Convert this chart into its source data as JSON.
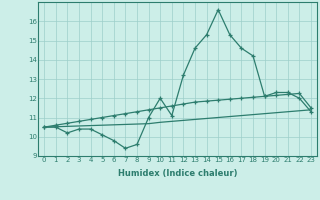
{
  "xlabel": "Humidex (Indice chaleur)",
  "x": [
    0,
    1,
    2,
    3,
    4,
    5,
    6,
    7,
    8,
    9,
    10,
    11,
    12,
    13,
    14,
    15,
    16,
    17,
    18,
    19,
    20,
    21,
    22,
    23
  ],
  "y_line1": [
    10.5,
    10.5,
    10.2,
    10.4,
    10.4,
    10.1,
    9.8,
    9.4,
    9.6,
    11.0,
    12.0,
    11.1,
    13.2,
    14.6,
    15.3,
    16.6,
    15.3,
    14.6,
    14.2,
    12.1,
    12.3,
    12.3,
    12.0,
    11.3
  ],
  "y_line2": [
    10.5,
    10.6,
    10.7,
    10.8,
    10.9,
    11.0,
    11.1,
    11.2,
    11.3,
    11.4,
    11.5,
    11.6,
    11.7,
    11.8,
    11.85,
    11.9,
    11.95,
    12.0,
    12.05,
    12.1,
    12.15,
    12.2,
    12.25,
    11.5
  ],
  "y_line3": [
    10.5,
    10.52,
    10.54,
    10.56,
    10.58,
    10.6,
    10.62,
    10.64,
    10.66,
    10.68,
    10.75,
    10.8,
    10.85,
    10.9,
    10.95,
    11.0,
    11.05,
    11.1,
    11.15,
    11.2,
    11.25,
    11.3,
    11.35,
    11.4
  ],
  "line_color": "#2d7d6e",
  "bg_color": "#cceee8",
  "grid_color": "#9dcfca",
  "ylim": [
    9,
    17
  ],
  "xlim": [
    -0.5,
    23.5
  ],
  "yticks": [
    9,
    10,
    11,
    12,
    13,
    14,
    15,
    16
  ],
  "xticks": [
    0,
    1,
    2,
    3,
    4,
    5,
    6,
    7,
    8,
    9,
    10,
    11,
    12,
    13,
    14,
    15,
    16,
    17,
    18,
    19,
    20,
    21,
    22,
    23
  ],
  "marker": "+",
  "markersize": 3.5,
  "linewidth": 0.9,
  "tick_fontsize": 5.0,
  "xlabel_fontsize": 6.0
}
